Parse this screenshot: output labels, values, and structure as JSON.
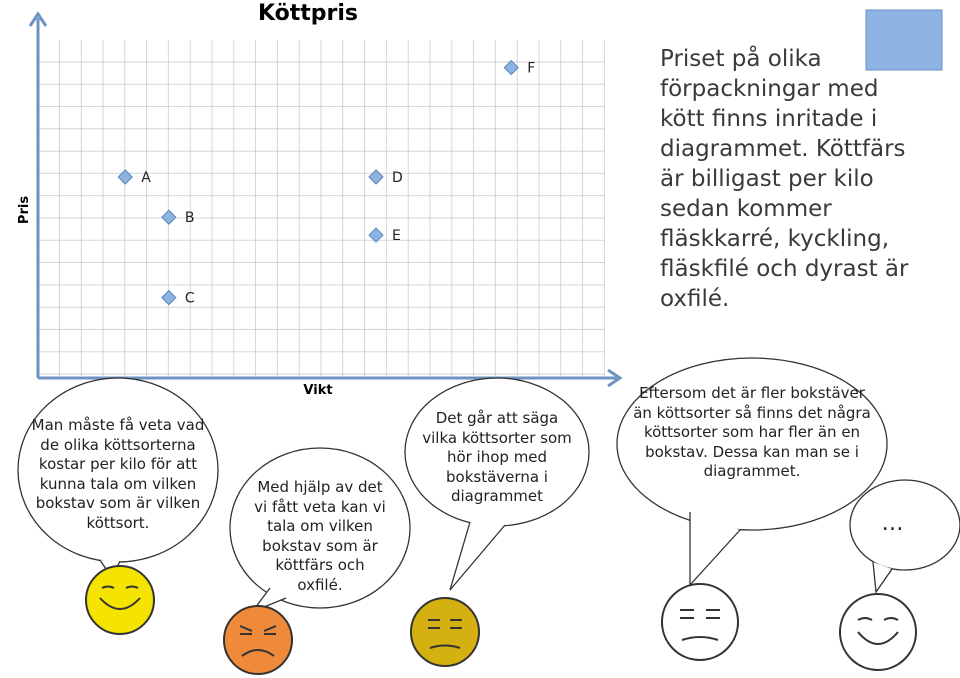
{
  "chart_data": {
    "type": "scatter",
    "title": "Köttpris",
    "x_label": "Vikt",
    "y_label": "Pris",
    "labels": [
      "A",
      "B",
      "C",
      "D",
      "E",
      "F"
    ],
    "x": [
      4,
      6,
      6,
      15.5,
      15.5,
      21.7
    ],
    "values": [
      9,
      7.2,
      3.6,
      9,
      6.4,
      13.9
    ],
    "xlim": [
      0,
      26
    ],
    "ylim": [
      0,
      15
    ],
    "grid": true,
    "color": "#8db3e2"
  },
  "description": "Priset på olika förpackningar med kött finns inritade i diagrammet. Köttfärs är billigast per kilo sedan kommer fläskkarré, kyckling, fläskfilé och dyrast är oxfilé.",
  "bubbles": [
    "Man måste få veta vad de olika köttsorterna kostar per kilo för att kunna tala om vilken bokstav som är vilken köttsort.",
    "Med hjälp av det vi fått veta kan vi tala om vilken bokstav som är köttfärs och oxfilé.",
    "Det går att säga vilka köttsorter som hör ihop med bokstäverna i diagrammet",
    "Eftersom det är fler bokstäver än köttsorter så finns det några köttsorter som har fler än en bokstav. Dessa kan man se i diagrammet.",
    "…"
  ]
}
